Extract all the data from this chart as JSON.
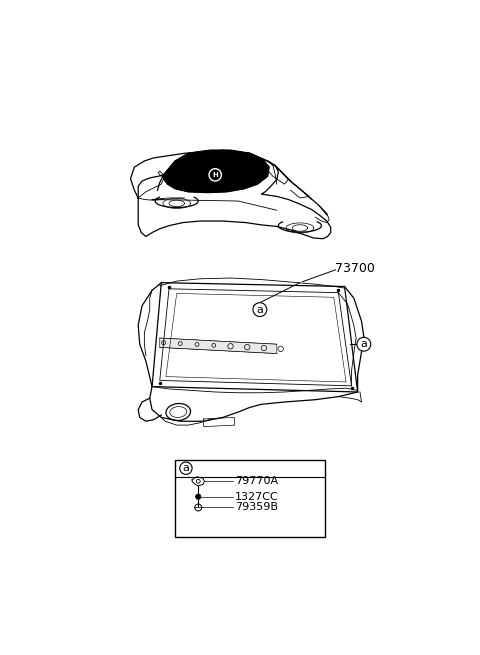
{
  "bg_color": "#ffffff",
  "part_number_main": "73700",
  "part_labels": [
    "79770A",
    "1327CC",
    "79359B"
  ],
  "callout_label": "a",
  "line_color": "#000000",
  "light_gray": "#cccccc"
}
